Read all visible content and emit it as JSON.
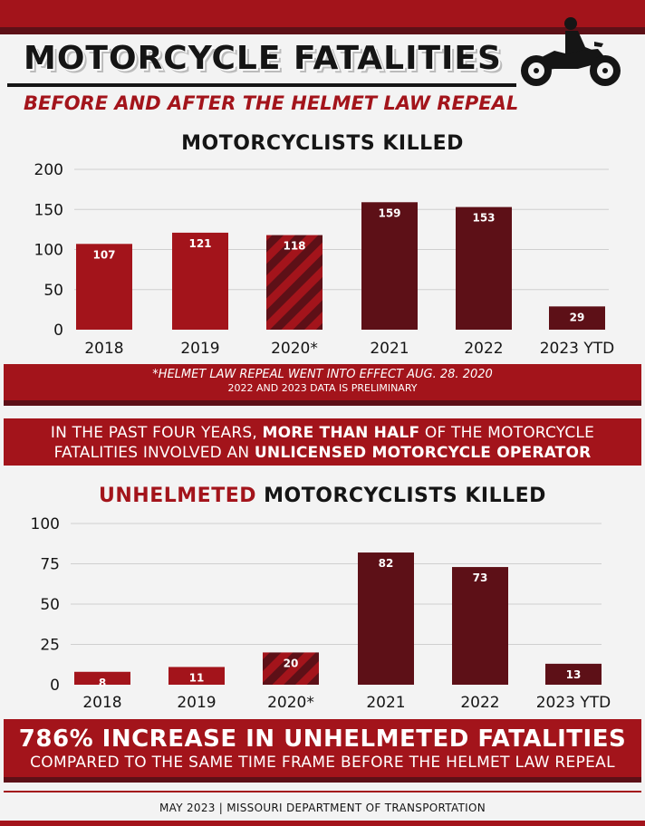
{
  "header": {
    "title": "MOTORCYCLE FATALITIES",
    "subtitle": "BEFORE AND AFTER THE HELMET LAW REPEAL"
  },
  "colors": {
    "red": "#a3141b",
    "maroon": "#5d1017",
    "dark": "#151515"
  },
  "chart_data": [
    {
      "type": "bar",
      "title": "MOTORCYCLISTS KILLED",
      "categories": [
        "2018",
        "2019",
        "2020*",
        "2021",
        "2022",
        "2023 YTD"
      ],
      "values": [
        107,
        121,
        118,
        159,
        153,
        29
      ],
      "yticks": [
        0,
        50,
        100,
        150,
        200
      ],
      "ylim": [
        0,
        200
      ],
      "xlabel": "",
      "ylabel": "",
      "grid": true,
      "bar_styles": [
        "red",
        "red",
        "striped",
        "maroon",
        "maroon",
        "maroon"
      ]
    },
    {
      "type": "bar",
      "title_accent": "UNHELMETED",
      "title_rest": " MOTORCYCLISTS KILLED",
      "categories": [
        "2018",
        "2019",
        "2020*",
        "2021",
        "2022",
        "2023 YTD"
      ],
      "values": [
        8,
        11,
        20,
        82,
        73,
        13
      ],
      "yticks": [
        0,
        25,
        50,
        75,
        100
      ],
      "ylim": [
        0,
        100
      ],
      "xlabel": "",
      "ylabel": "",
      "grid": true,
      "bar_styles": [
        "red",
        "red",
        "striped",
        "maroon",
        "maroon",
        "maroon"
      ]
    }
  ],
  "notes": {
    "line1": "*HELMET LAW REPEAL WENT INTO EFFECT AUG. 28. 2020",
    "line2": "2022 AND 2023 DATA IS PRELIMINARY"
  },
  "callout": {
    "part1": "IN THE PAST FOUR YEARS, ",
    "bold1": "MORE THAN HALF",
    "part2": " OF THE MOTORCYCLE",
    "part3": "FATALITIES INVOLVED AN ",
    "bold2": "UNLICENSED MOTORCYCLE OPERATOR"
  },
  "summary": {
    "headline": "786% INCREASE IN UNHELMETED FATALITIES",
    "subline": "COMPARED TO THE SAME TIME FRAME BEFORE THE HELMET LAW REPEAL"
  },
  "footer": {
    "text": "MAY 2023 | MISSOURI DEPARTMENT OF TRANSPORTATION"
  },
  "icons": {
    "motorcycle": "motorcycle-rider-icon"
  }
}
